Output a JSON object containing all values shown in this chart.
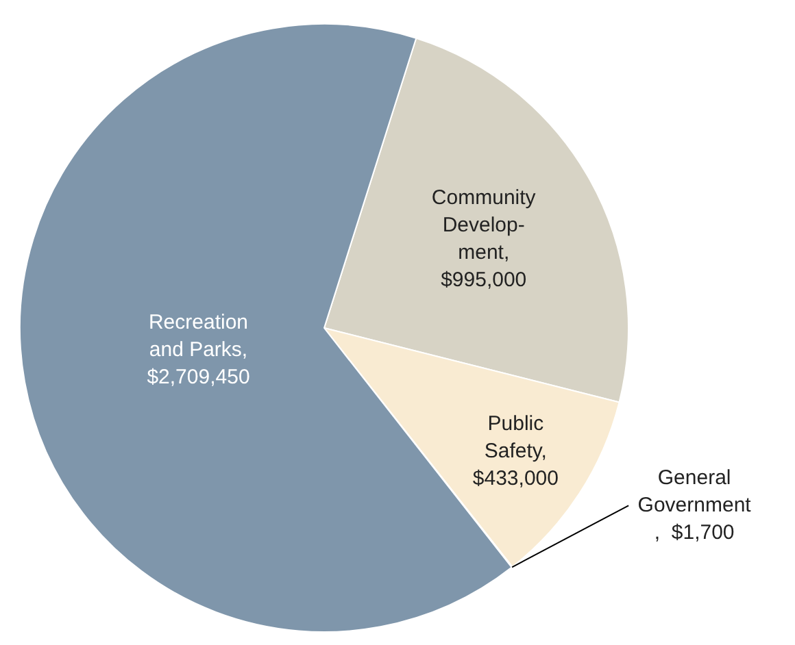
{
  "chart_data": {
    "type": "pie",
    "categories": [
      "Community Develop-ment",
      "Public Safety",
      "General Government",
      "Recreation and Parks"
    ],
    "values": [
      995000,
      433000,
      1700,
      2709450
    ],
    "colors": [
      "#d7d3c5",
      "#f9ebd2",
      "#c9d3de",
      "#7f96ab"
    ],
    "value_labels": [
      ", $995,000",
      ", $433,000",
      ",  $1,700",
      ", $2,709,450"
    ],
    "legend": false
  }
}
